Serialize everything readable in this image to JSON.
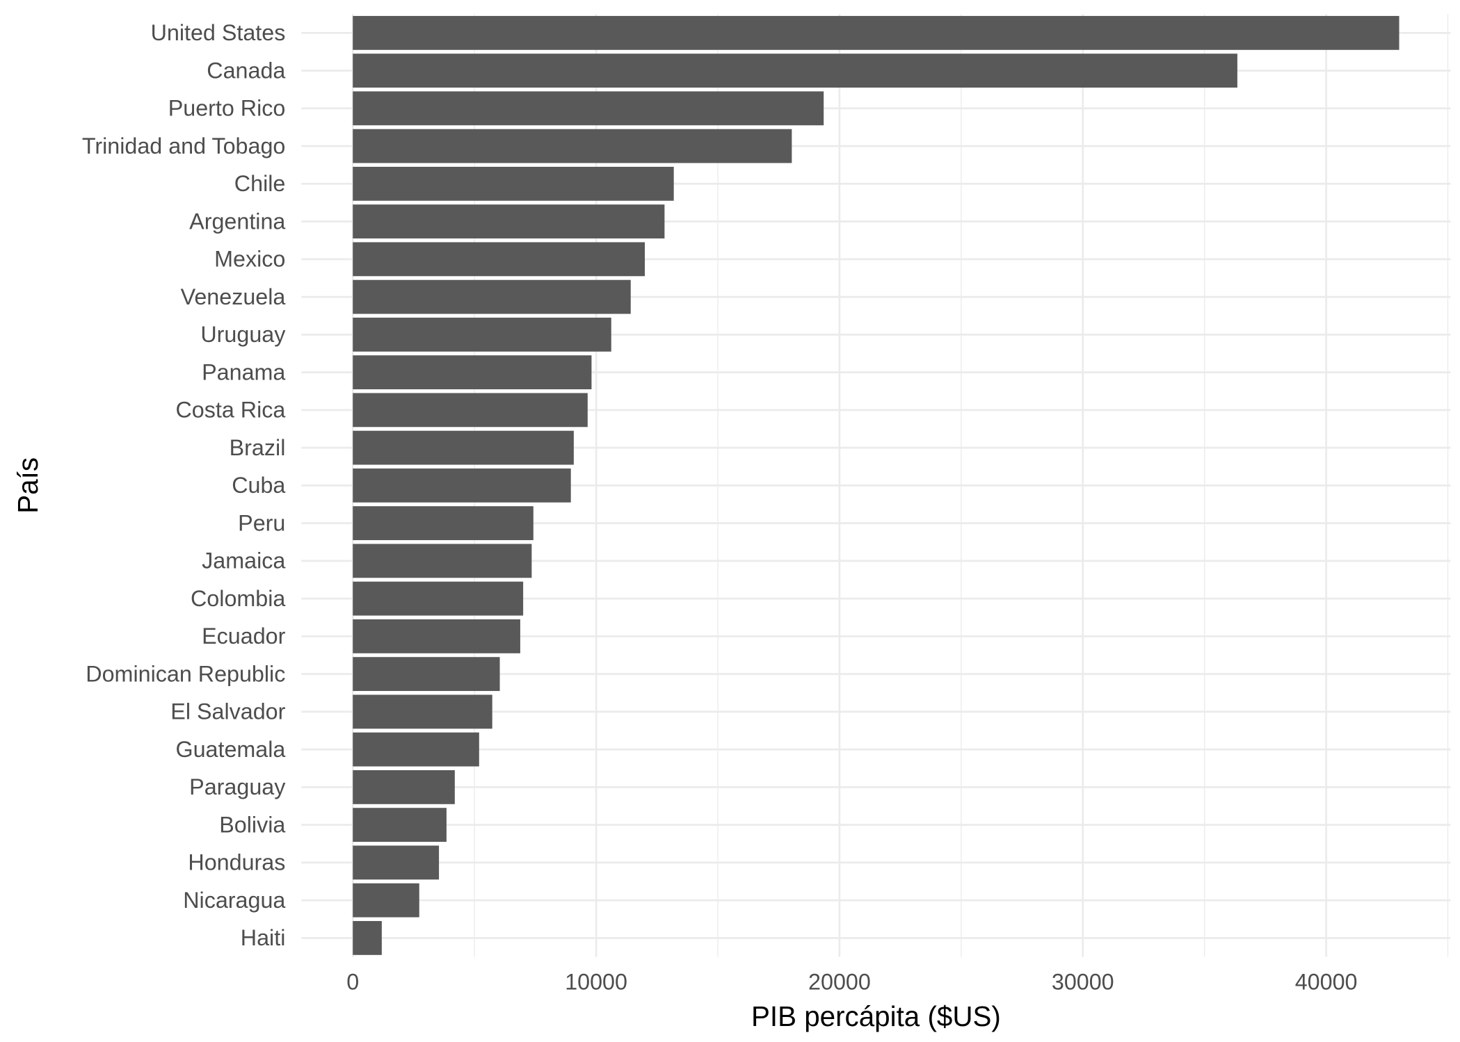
{
  "chart_data": {
    "type": "bar",
    "orientation": "horizontal",
    "title": "",
    "xlabel": "PIB percápita ($US)",
    "ylabel": "País",
    "xlim": [
      -2115,
      45115
    ],
    "x_ticks": [
      0,
      10000,
      20000,
      30000,
      40000
    ],
    "x_tick_labels": [
      "0",
      "10000",
      "20000",
      "30000",
      "40000"
    ],
    "grid": true,
    "bar_color": "#595959",
    "grid_color": "#ebebeb",
    "categories": [
      "United States",
      "Canada",
      "Puerto Rico",
      "Trinidad and Tobago",
      "Chile",
      "Argentina",
      "Mexico",
      "Venezuela",
      "Uruguay",
      "Panama",
      "Costa Rica",
      "Brazil",
      "Cuba",
      "Peru",
      "Jamaica",
      "Colombia",
      "Ecuador",
      "Dominican Republic",
      "El Salvador",
      "Guatemala",
      "Paraguay",
      "Bolivia",
      "Honduras",
      "Nicaragua",
      "Haiti"
    ],
    "values": [
      43000,
      36350,
      19350,
      18040,
      13190,
      12810,
      12000,
      11420,
      10620,
      9810,
      9650,
      9080,
      8960,
      7420,
      7350,
      7000,
      6880,
      6040,
      5730,
      5190,
      4190,
      3850,
      3540,
      2730,
      1190
    ]
  }
}
